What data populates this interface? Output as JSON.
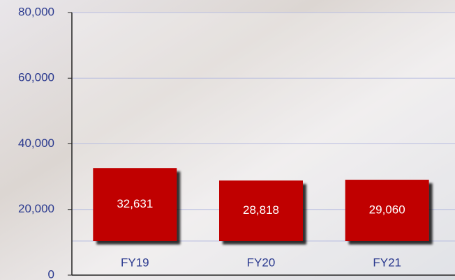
{
  "chart_data": {
    "type": "bar",
    "categories": [
      "FY19",
      "FY20",
      "FY21"
    ],
    "values": [
      32631,
      28818,
      29060
    ],
    "value_labels": [
      "32,631",
      "28,818",
      "29,060"
    ],
    "color": "#c00000",
    "ylim": [
      0,
      80000
    ],
    "yticks": [
      {
        "value": 0,
        "label": "0"
      },
      {
        "value": 20000,
        "label": "20,000"
      },
      {
        "value": 40000,
        "label": "40,000"
      },
      {
        "value": 60000,
        "label": "60,000"
      },
      {
        "value": 80000,
        "label": "80,000"
      }
    ],
    "grid": true
  }
}
